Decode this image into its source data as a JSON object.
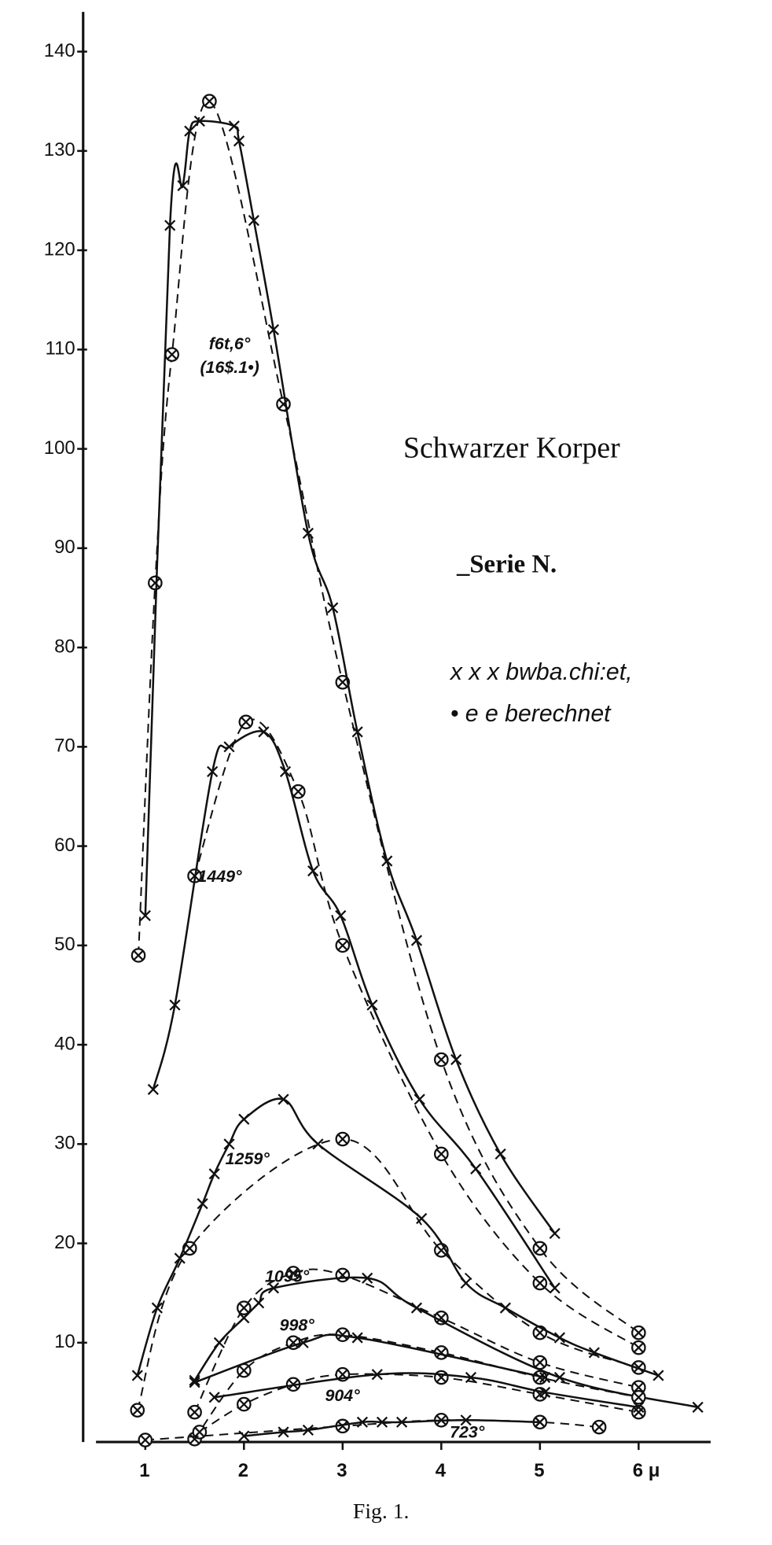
{
  "chart_data": {
    "type": "line",
    "title": "Schwarzer Korper",
    "subtitle": "_Serie N.",
    "legend": [
      "x x x bwba.chi:et,",
      "• e e berechnet"
    ],
    "caption": "Fig. 1.",
    "color": "#111111",
    "xlim": [
      0.37,
      6.73
    ],
    "ylim": [
      0,
      144
    ],
    "xticks": [
      1,
      2,
      3,
      4,
      5,
      {
        "value": 6,
        "label": "6 μ"
      }
    ],
    "yticks": [
      10,
      20,
      30,
      40,
      50,
      60,
      70,
      80,
      90,
      100,
      110,
      120,
      130,
      140
    ],
    "curves": [
      {
        "labels": [
          "f6t,6°",
          "(16$.1•)"
        ],
        "observed": {
          "x": [
            1,
            1.25,
            1.38,
            1.45,
            1.55,
            1.9,
            1.95,
            2.1,
            2.3,
            2.65,
            2.9,
            3.15,
            3.45,
            3.75,
            4.15,
            4.6,
            5.15
          ],
          "values": [
            53,
            122.5,
            126.5,
            132,
            133,
            132.5,
            131,
            123,
            112,
            91.5,
            84,
            71.5,
            58.5,
            50.5,
            38.5,
            29,
            21
          ]
        },
        "calculated": {
          "x": [
            0.93,
            1.1,
            1.27,
            1.65,
            2.4,
            3,
            4,
            5,
            6
          ],
          "values": [
            49,
            86.5,
            109.5,
            135,
            104.5,
            76.5,
            38.5,
            19.5,
            11
          ]
        }
      },
      {
        "labels": [
          "1449°"
        ],
        "observed": {
          "x": [
            1.08,
            1.3,
            1.68,
            1.85,
            2.2,
            2.42,
            2.7,
            2.98,
            3.3,
            3.78,
            4.35,
            5.15
          ],
          "values": [
            35.5,
            44,
            67.5,
            70,
            71.5,
            67.5,
            57.5,
            53,
            44,
            34.5,
            27.5,
            15.5
          ]
        },
        "calculated": {
          "x": [
            1.5,
            2.02,
            2.55,
            3,
            4,
            5,
            6
          ],
          "values": [
            57,
            72.5,
            65.5,
            50,
            29,
            16,
            9.5
          ]
        }
      },
      {
        "labels": [
          "1259°"
        ],
        "observed": {
          "x": [
            0.92,
            1.12,
            1.35,
            1.58,
            1.7,
            1.85,
            2,
            2.4,
            2.75,
            3.8,
            4.25,
            4.65,
            5.2,
            5.55,
            6.2
          ],
          "values": [
            6.7,
            13.5,
            18.5,
            24,
            27,
            30,
            32.5,
            34.5,
            30,
            22.5,
            16,
            13.5,
            10.5,
            9,
            6.7
          ]
        },
        "calculated": {
          "x": [
            0.92,
            1.45,
            3,
            4,
            5,
            6
          ],
          "values": [
            3.2,
            19.5,
            30.5,
            19.3,
            11,
            7.5
          ]
        }
      },
      {
        "labels": [
          "1095°"
        ],
        "observed": {
          "x": [
            1.5,
            1.75,
            2,
            2.15,
            2.3,
            3.25,
            3.75,
            5.2,
            6.6
          ],
          "values": [
            6.2,
            10,
            12.5,
            14,
            15.5,
            16.5,
            13.5,
            6.5,
            3.5
          ]
        },
        "calculated": {
          "x": [
            1.5,
            2,
            2.5,
            3,
            4,
            5,
            6
          ],
          "values": [
            3,
            13.5,
            17,
            16.8,
            12.5,
            8,
            5.5
          ]
        }
      },
      {
        "labels": [
          "998°"
        ],
        "observed": {
          "x": [
            1.5,
            2.6,
            3.15,
            5.05
          ],
          "values": [
            6,
            10,
            10.5,
            6.5
          ]
        },
        "calculated": {
          "x": [
            1.5,
            2,
            2.5,
            3,
            4,
            5,
            6
          ],
          "values": [
            0.3,
            7.2,
            10,
            10.8,
            9,
            6.5,
            4.5
          ]
        }
      },
      {
        "labels": [
          "904°"
        ],
        "observed": {
          "x": [
            1.7,
            3.35,
            4.3,
            5.05,
            6
          ],
          "values": [
            4.5,
            6.8,
            6.5,
            5,
            3.5
          ]
        },
        "calculated": {
          "x": [
            1.55,
            2,
            2.5,
            3,
            4,
            5,
            6
          ],
          "values": [
            1,
            3.8,
            5.8,
            6.8,
            6.5,
            4.8,
            3
          ]
        }
      },
      {
        "labels": [
          "723°"
        ],
        "observed": {
          "x": [
            2,
            2.4,
            2.65,
            3.2,
            3.4,
            3.6,
            4.25,
            5
          ],
          "values": [
            0.6,
            1,
            1.2,
            2,
            2,
            2,
            2.2,
            2
          ]
        },
        "calculated": {
          "x": [
            1,
            3,
            4,
            5,
            5.6
          ],
          "values": [
            0.2,
            1.6,
            2.2,
            2,
            1.5
          ]
        }
      }
    ]
  }
}
